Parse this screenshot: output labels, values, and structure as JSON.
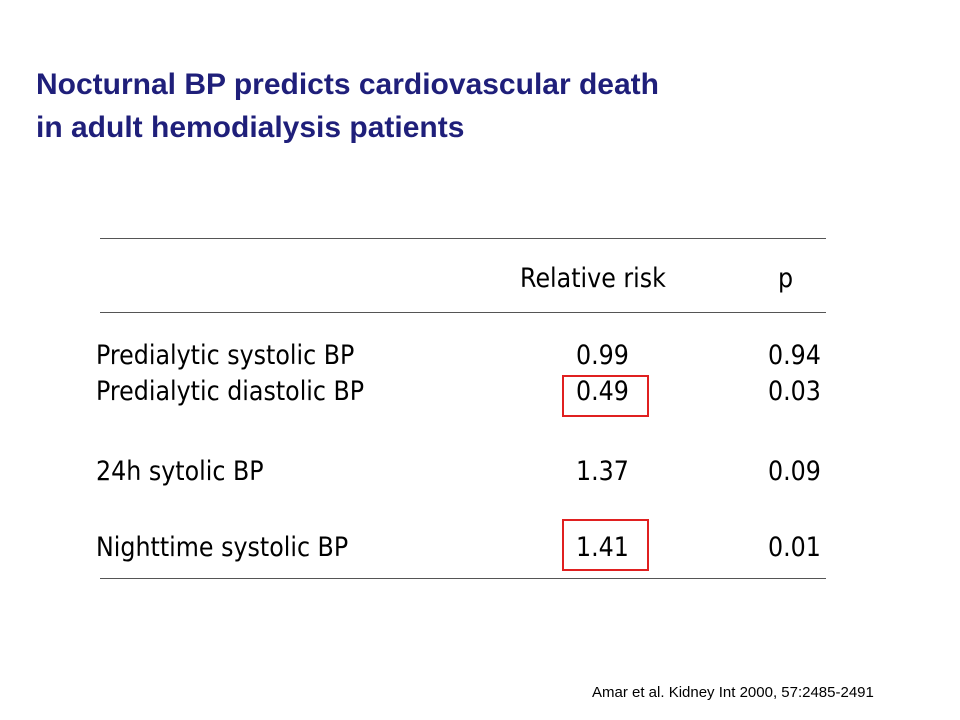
{
  "slide": {
    "title_line1": "Nocturnal BP predicts cardiovascular death",
    "title_line2": "in adult hemodialysis patients",
    "title_color": "#1f1f7a",
    "highlight_color": "#e02020"
  },
  "table": {
    "headers": {
      "relative_risk": "Relative risk",
      "p": "p"
    },
    "rows": [
      {
        "label": "Predialytic systolic BP",
        "relative_risk": "0.99",
        "p": "0.94",
        "highlighted": false
      },
      {
        "label": "Predialytic diastolic BP",
        "relative_risk": "0.49",
        "p": "0.03",
        "highlighted": true
      },
      {
        "label": "24h sytolic BP",
        "relative_risk": "1.37",
        "p": "0.09",
        "highlighted": false
      },
      {
        "label": "Nighttime systolic BP",
        "relative_risk": "1.41",
        "p": "0.01",
        "highlighted": true
      }
    ]
  },
  "citation": "Amar et al. Kidney Int 2000, 57:2485-2491"
}
